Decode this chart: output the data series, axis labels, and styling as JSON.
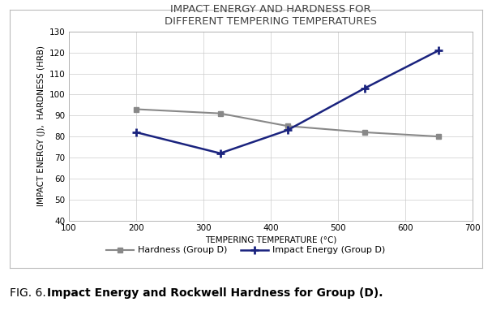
{
  "title_line1": "IMPACT ENERGY AND HARDNESS FOR",
  "title_line2": "DIFFERENT TEMPERING TEMPERATURES",
  "xlabel": "TEMPERING TEMPERATURE (°C)",
  "ylabel": "IMPACT ENERGY (J),  HARDNESS (HRB)",
  "xlim": [
    100,
    700
  ],
  "ylim": [
    40,
    130
  ],
  "xticks": [
    100,
    200,
    300,
    400,
    500,
    600,
    700
  ],
  "yticks": [
    40,
    50,
    60,
    70,
    80,
    90,
    100,
    110,
    120,
    130
  ],
  "hardness_x": [
    200,
    325,
    425,
    540,
    650
  ],
  "hardness_y": [
    93,
    91,
    85,
    82,
    80
  ],
  "impact_x": [
    200,
    325,
    425,
    540,
    650
  ],
  "impact_y": [
    82,
    72,
    83,
    103,
    121
  ],
  "hardness_color": "#888888",
  "impact_color": "#1a237e",
  "hardness_label": "Hardness (Group D)",
  "impact_label": "Impact Energy (Group D)",
  "background_color": "#ffffff",
  "box_edge_color": "#bbbbbb",
  "grid_color": "#cccccc",
  "title_color": "#444444",
  "title_fontsize": 9.5,
  "label_fontsize": 7.5,
  "tick_fontsize": 7.5,
  "legend_fontsize": 8,
  "caption_normal": "FIG. 6. ",
  "caption_bold": "Impact Energy and Rockwell Hardness for Group (D).",
  "caption_fontsize": 10
}
